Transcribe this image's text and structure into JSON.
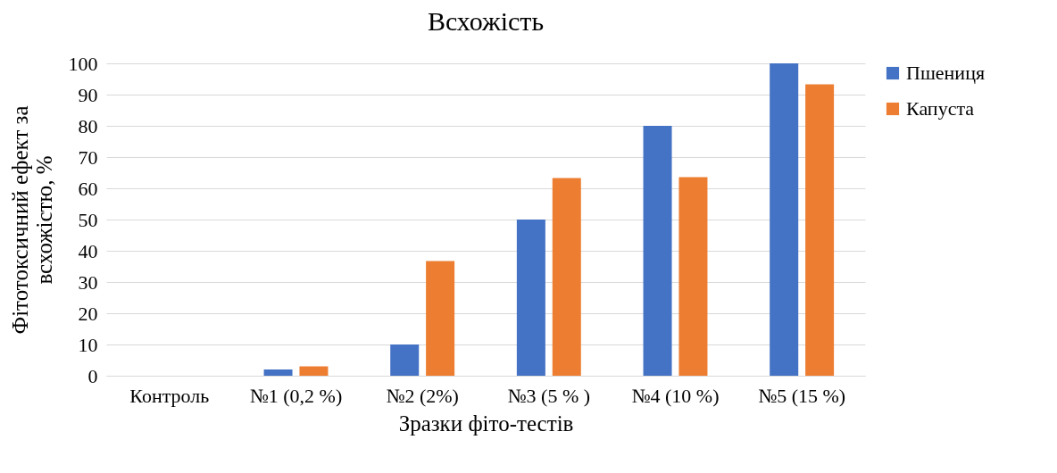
{
  "chart_data": {
    "type": "bar",
    "title": "Всхожість",
    "xlabel": "Зразки фіто-тестів",
    "ylabel": "Фітотоксичний ефект за\nвсхожістю, %",
    "categories": [
      "Контроль",
      "№1 (0,2 %)",
      "№2 (2%)",
      "№3 (5 % )",
      "№4 (10 %)",
      "№5 (15 %)"
    ],
    "series": [
      {
        "name": "Пшениця",
        "color": "#4472c4",
        "values": [
          0,
          2,
          10,
          50,
          80,
          100
        ]
      },
      {
        "name": "Капуста",
        "color": "#ed7d31",
        "values": [
          0,
          3,
          36.7,
          63.3,
          63.6,
          93.3
        ]
      }
    ],
    "ylim": [
      0,
      100
    ],
    "yticks": [
      0,
      10,
      20,
      30,
      40,
      50,
      60,
      70,
      80,
      90,
      100
    ],
    "grid": "y",
    "legend": "right"
  }
}
